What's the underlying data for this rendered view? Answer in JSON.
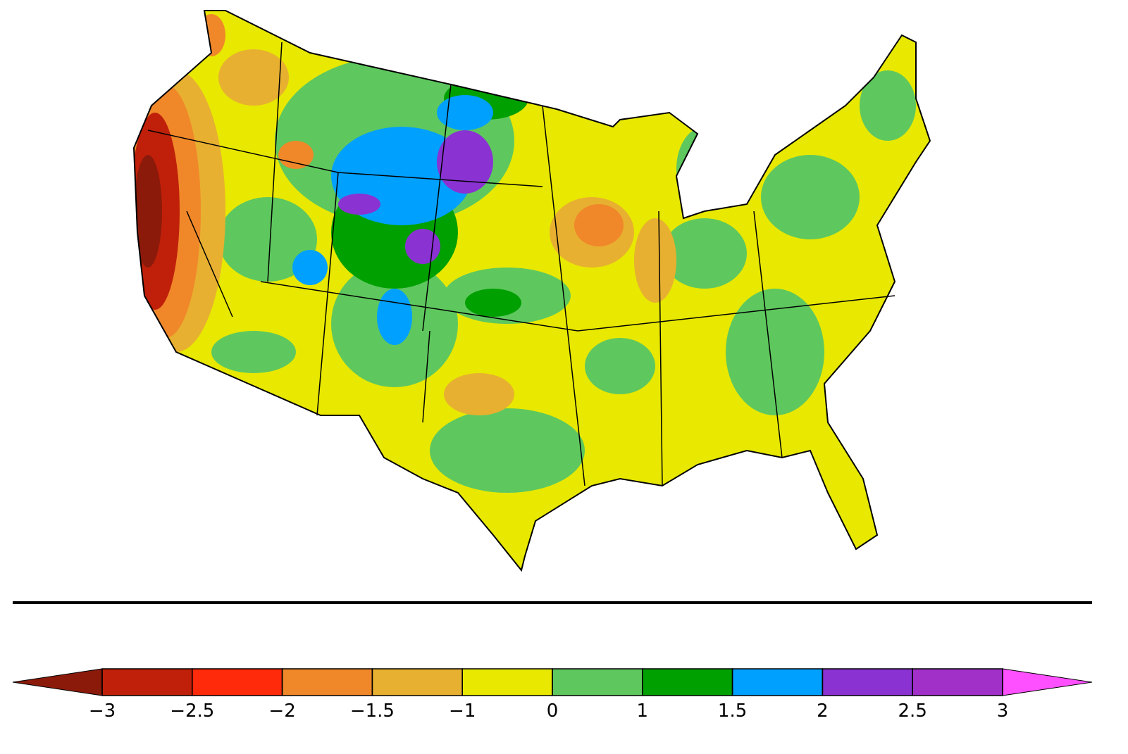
{
  "legend": {
    "ticks": [
      {
        "value": -3,
        "label": "−3"
      },
      {
        "value": -2.5,
        "label": "−2.5"
      },
      {
        "value": -2,
        "label": "−2"
      },
      {
        "value": -1.5,
        "label": "−1.5"
      },
      {
        "value": -1,
        "label": "−1"
      },
      0,
      1,
      1.5,
      2,
      2.5,
      3
    ],
    "colors": [
      "#c0200a",
      "#ff2a0a",
      "#f0882a",
      "#e8b030",
      "#e8e800",
      "#5ec85e",
      "#00a000",
      "#00a0ff",
      "#8a32d2",
      "#a030c8"
    ],
    "under_color": "#8b1a0a",
    "over_color": "#ff50ff"
  }
}
